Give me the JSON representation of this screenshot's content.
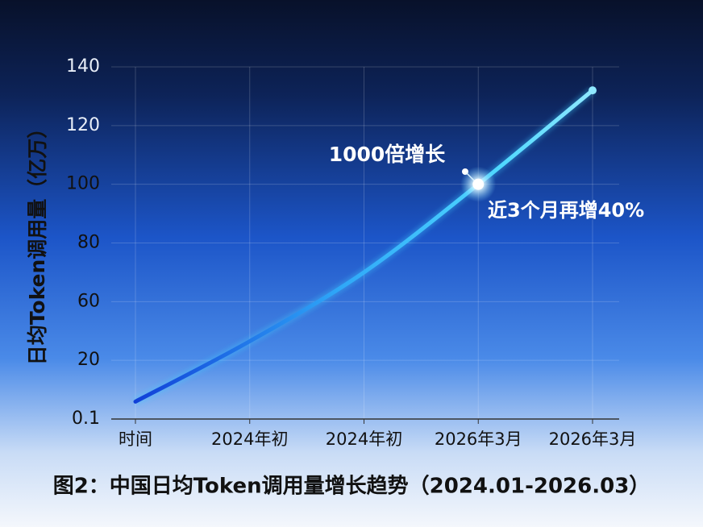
{
  "chart_data": {
    "type": "line",
    "title": "图2：中国日均Token调用量增长趋势（2024.01-2026.03）",
    "y_label": "日均Token调用量（亿万）",
    "categories": [
      "时间",
      "2024年初",
      "2024年初",
      "2026年3月",
      "2026年3月"
    ],
    "series": [
      {
        "name": "日均Token调用量",
        "color": "#3cc8ff",
        "values": [
          6,
          33,
          70,
          100,
          132
        ]
      }
    ],
    "ylim": [
      0.1,
      140
    ],
    "yticks": [
      0.1,
      20,
      60,
      80,
      100,
      120,
      140
    ],
    "grid": true,
    "annotations": [
      "1000倍增长",
      "近3个月再增40%"
    ]
  }
}
